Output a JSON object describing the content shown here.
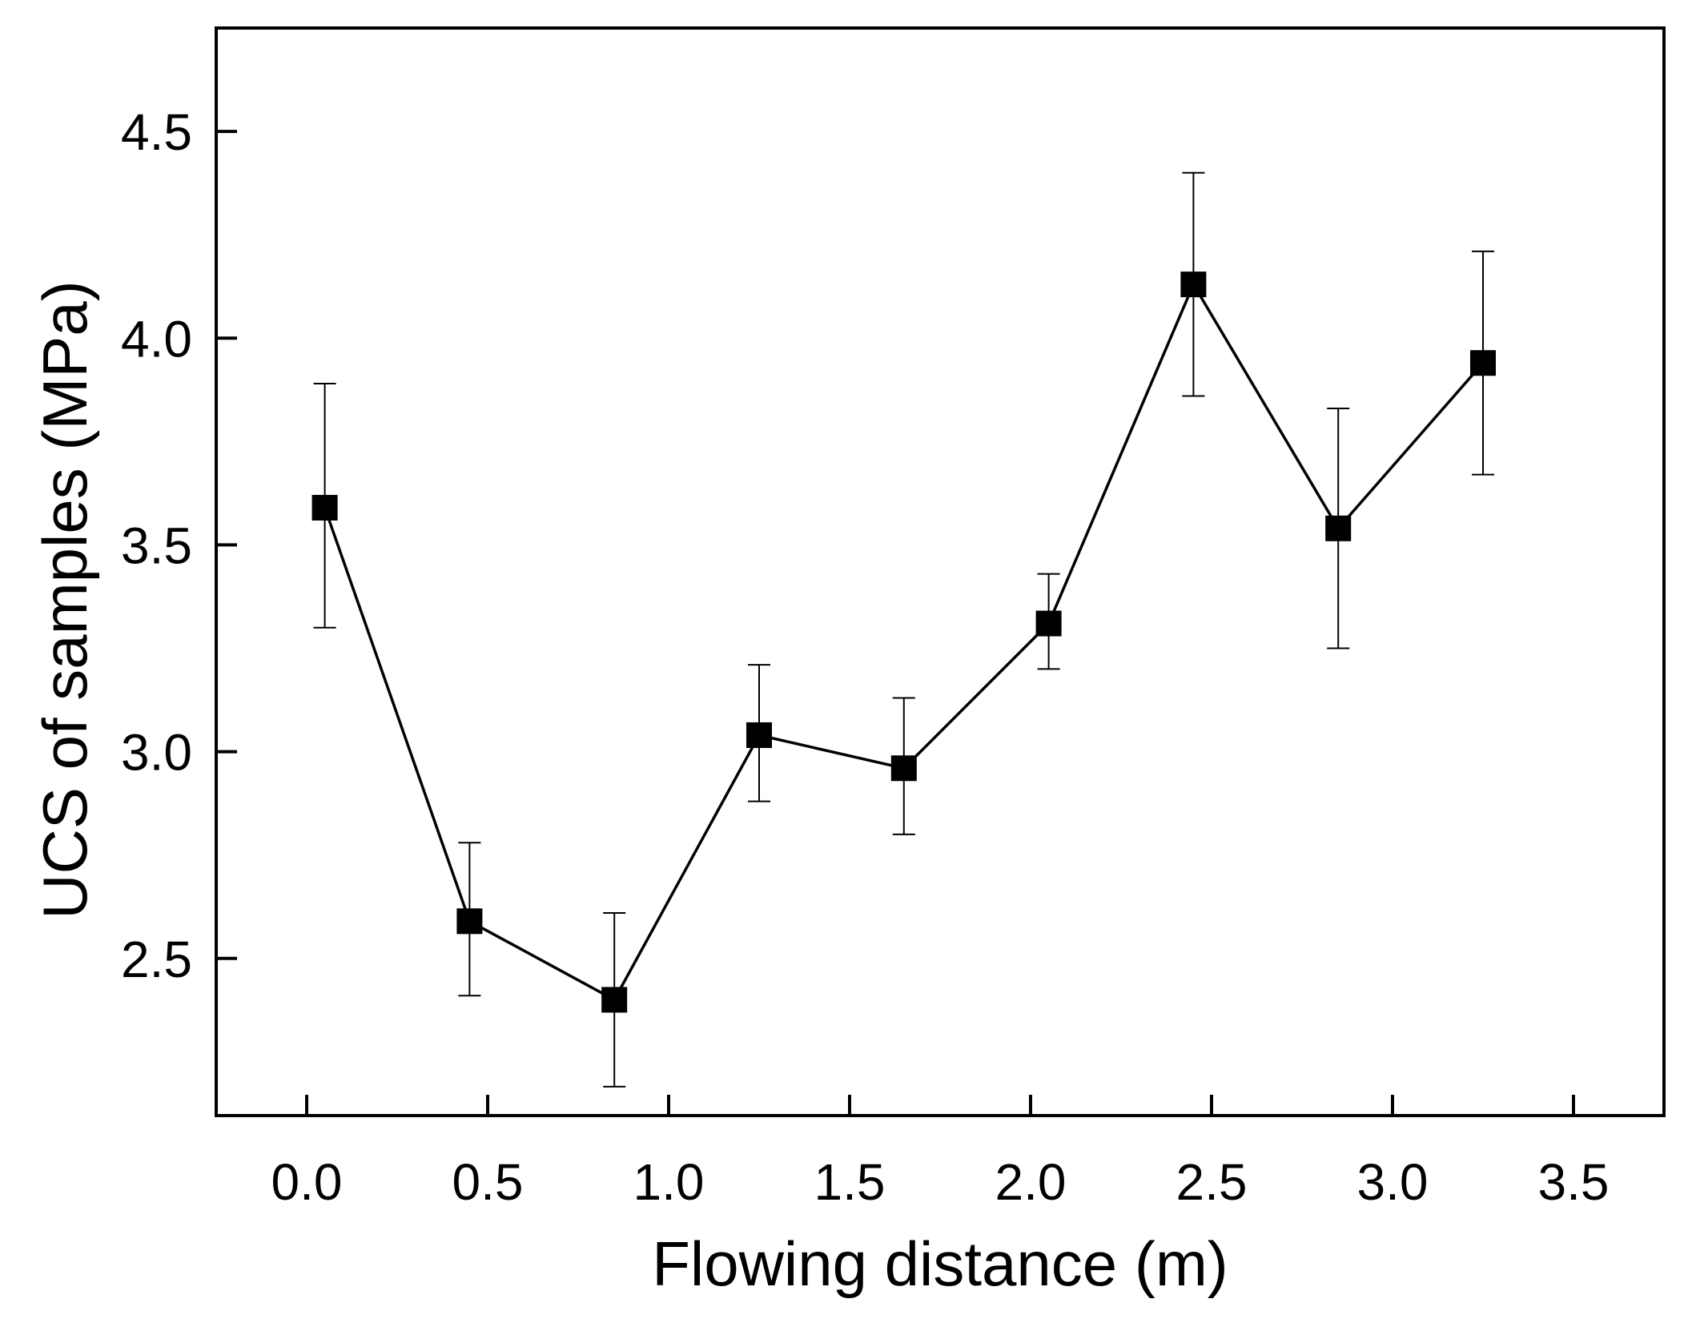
{
  "chart_data": {
    "type": "line",
    "title": "",
    "xlabel": "Flowing distance (m)",
    "ylabel": "UCS of samples (MPa)",
    "xlim": [
      -0.25,
      3.75
    ],
    "ylim": [
      2.12,
      4.75
    ],
    "x_ticks": [
      {
        "value": 0.0,
        "label": "0.0"
      },
      {
        "value": 0.5,
        "label": "0.5"
      },
      {
        "value": 1.0,
        "label": "1.0"
      },
      {
        "value": 1.5,
        "label": "1.5"
      },
      {
        "value": 2.0,
        "label": "2.0"
      },
      {
        "value": 2.5,
        "label": "2.5"
      },
      {
        "value": 3.0,
        "label": "3.0"
      },
      {
        "value": 3.5,
        "label": "3.5"
      }
    ],
    "y_ticks": [
      {
        "value": 2.5,
        "label": "2.5"
      },
      {
        "value": 3.0,
        "label": "3.0"
      },
      {
        "value": 3.5,
        "label": "3.5"
      },
      {
        "value": 4.0,
        "label": "4.0"
      },
      {
        "value": 4.5,
        "label": "4.5"
      }
    ],
    "grid": false,
    "legend": "none",
    "marker": "square",
    "color": "#000000",
    "series": [
      {
        "name": "UCS",
        "points": [
          {
            "x": 0.05,
            "y": 3.59,
            "err_low": 3.3,
            "err_high": 3.89
          },
          {
            "x": 0.45,
            "y": 2.59,
            "err_low": 2.41,
            "err_high": 2.78
          },
          {
            "x": 0.85,
            "y": 2.4,
            "err_low": 2.19,
            "err_high": 2.61
          },
          {
            "x": 1.25,
            "y": 3.04,
            "err_low": 2.88,
            "err_high": 3.21
          },
          {
            "x": 1.65,
            "y": 2.96,
            "err_low": 2.8,
            "err_high": 3.13
          },
          {
            "x": 2.05,
            "y": 3.31,
            "err_low": 3.2,
            "err_high": 3.43
          },
          {
            "x": 2.45,
            "y": 4.13,
            "err_low": 3.86,
            "err_high": 4.4
          },
          {
            "x": 2.85,
            "y": 3.54,
            "err_low": 3.25,
            "err_high": 3.83
          },
          {
            "x": 3.25,
            "y": 3.94,
            "err_low": 3.67,
            "err_high": 4.21
          }
        ]
      }
    ]
  }
}
